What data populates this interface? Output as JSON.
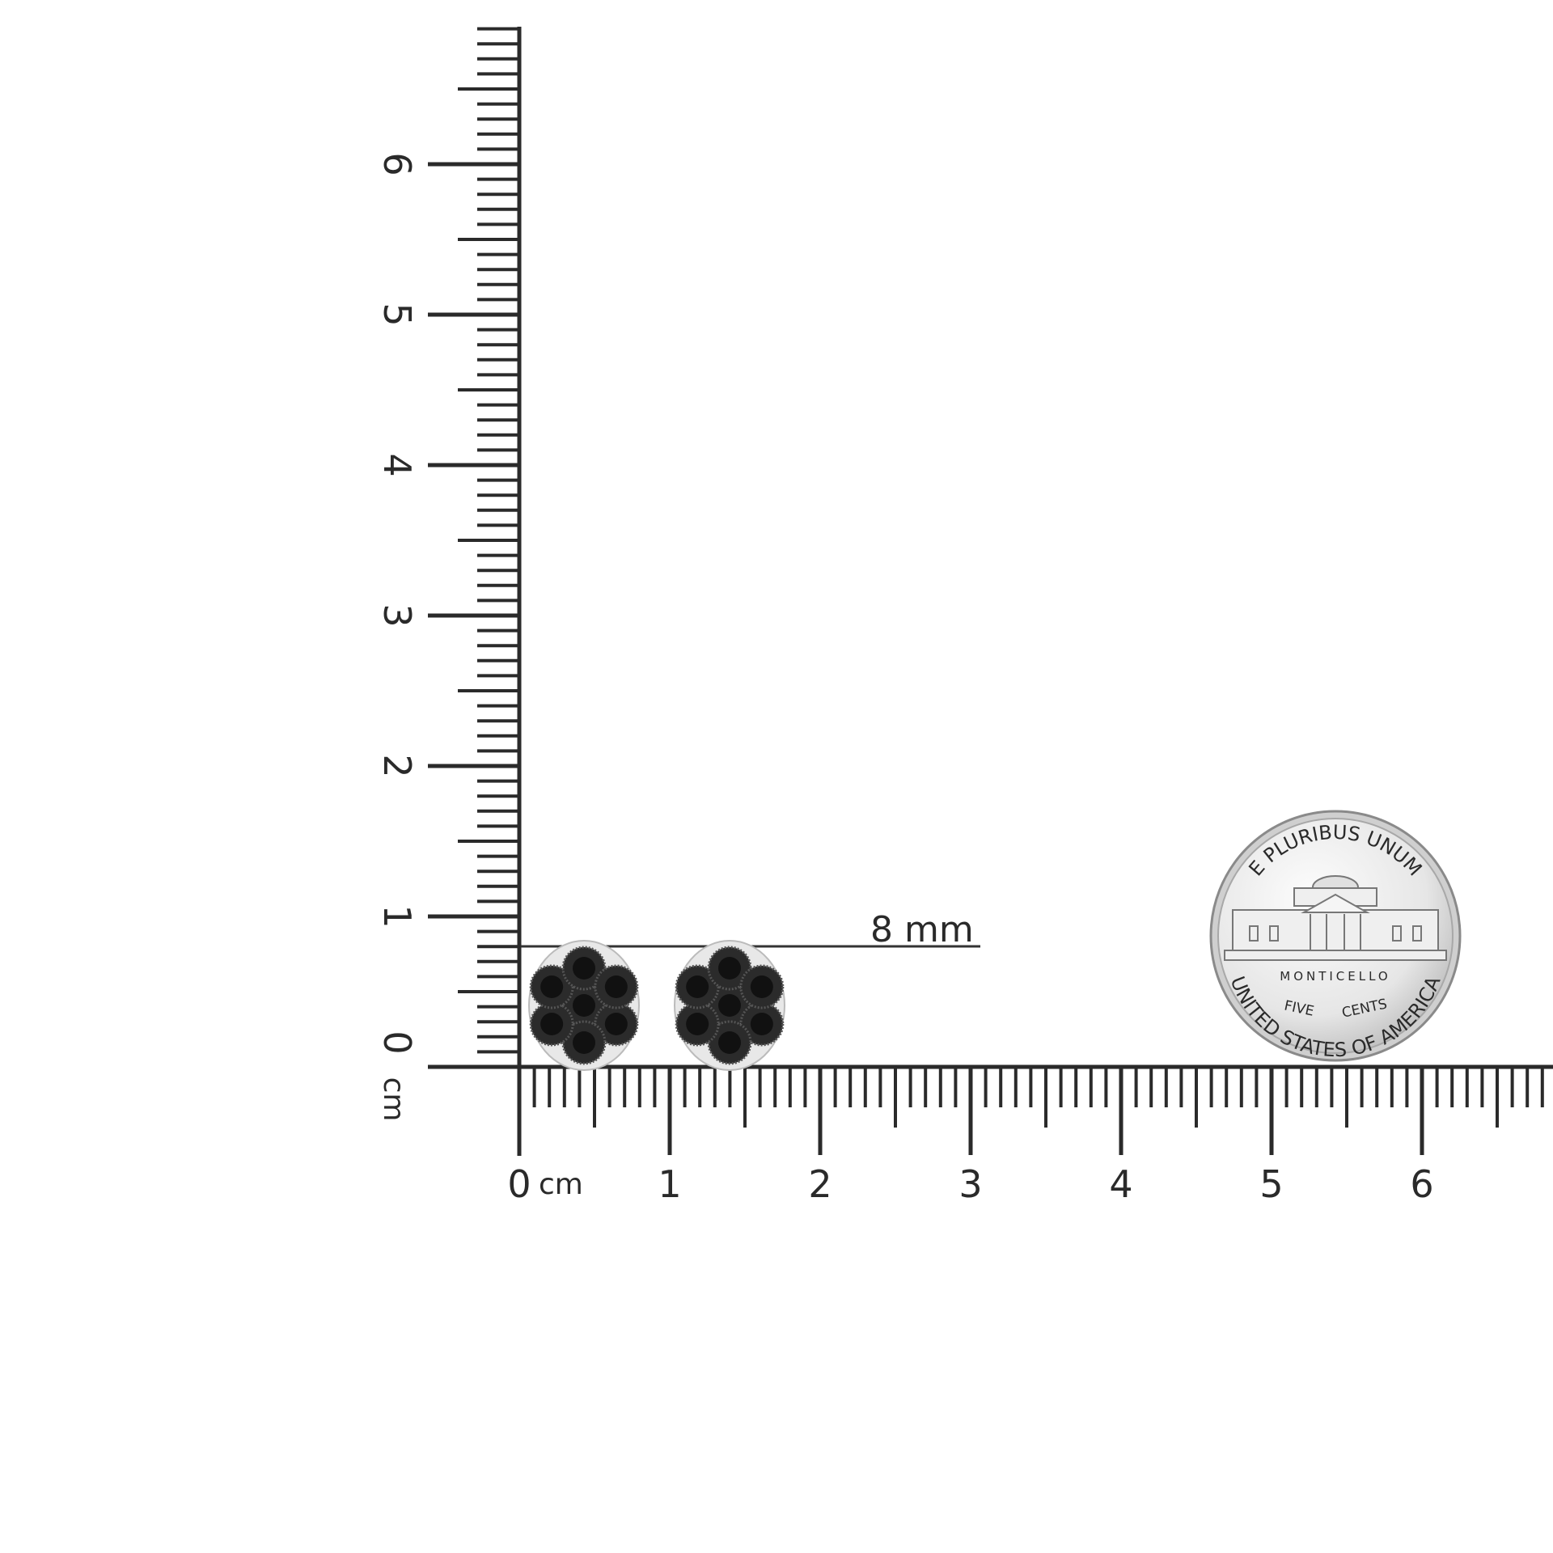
{
  "rulers": {
    "unit_label": "cm",
    "vertical_labels": [
      "0",
      "1",
      "2",
      "3",
      "4",
      "5",
      "6"
    ],
    "horizontal_labels": [
      "0",
      "1",
      "2",
      "3",
      "4",
      "5",
      "6"
    ],
    "vertical_range_cm": [
      0,
      6.9
    ],
    "horizontal_range_cm": [
      0,
      6.9
    ],
    "color": "#2a2a2a"
  },
  "measurement": {
    "label": "8 mm",
    "value_mm": 8
  },
  "product": {
    "items": [
      "earring-left",
      "earring-right"
    ],
    "stone_color": "#111111",
    "metal_color": "#e8e8e8"
  },
  "coin": {
    "top_text": "E PLURIBUS UNUM",
    "building_text": "MONTICELLO",
    "value_text_1": "FIVE",
    "value_text_2": "CENTS",
    "bottom_text": "UNITED STATES OF AMERICA"
  }
}
